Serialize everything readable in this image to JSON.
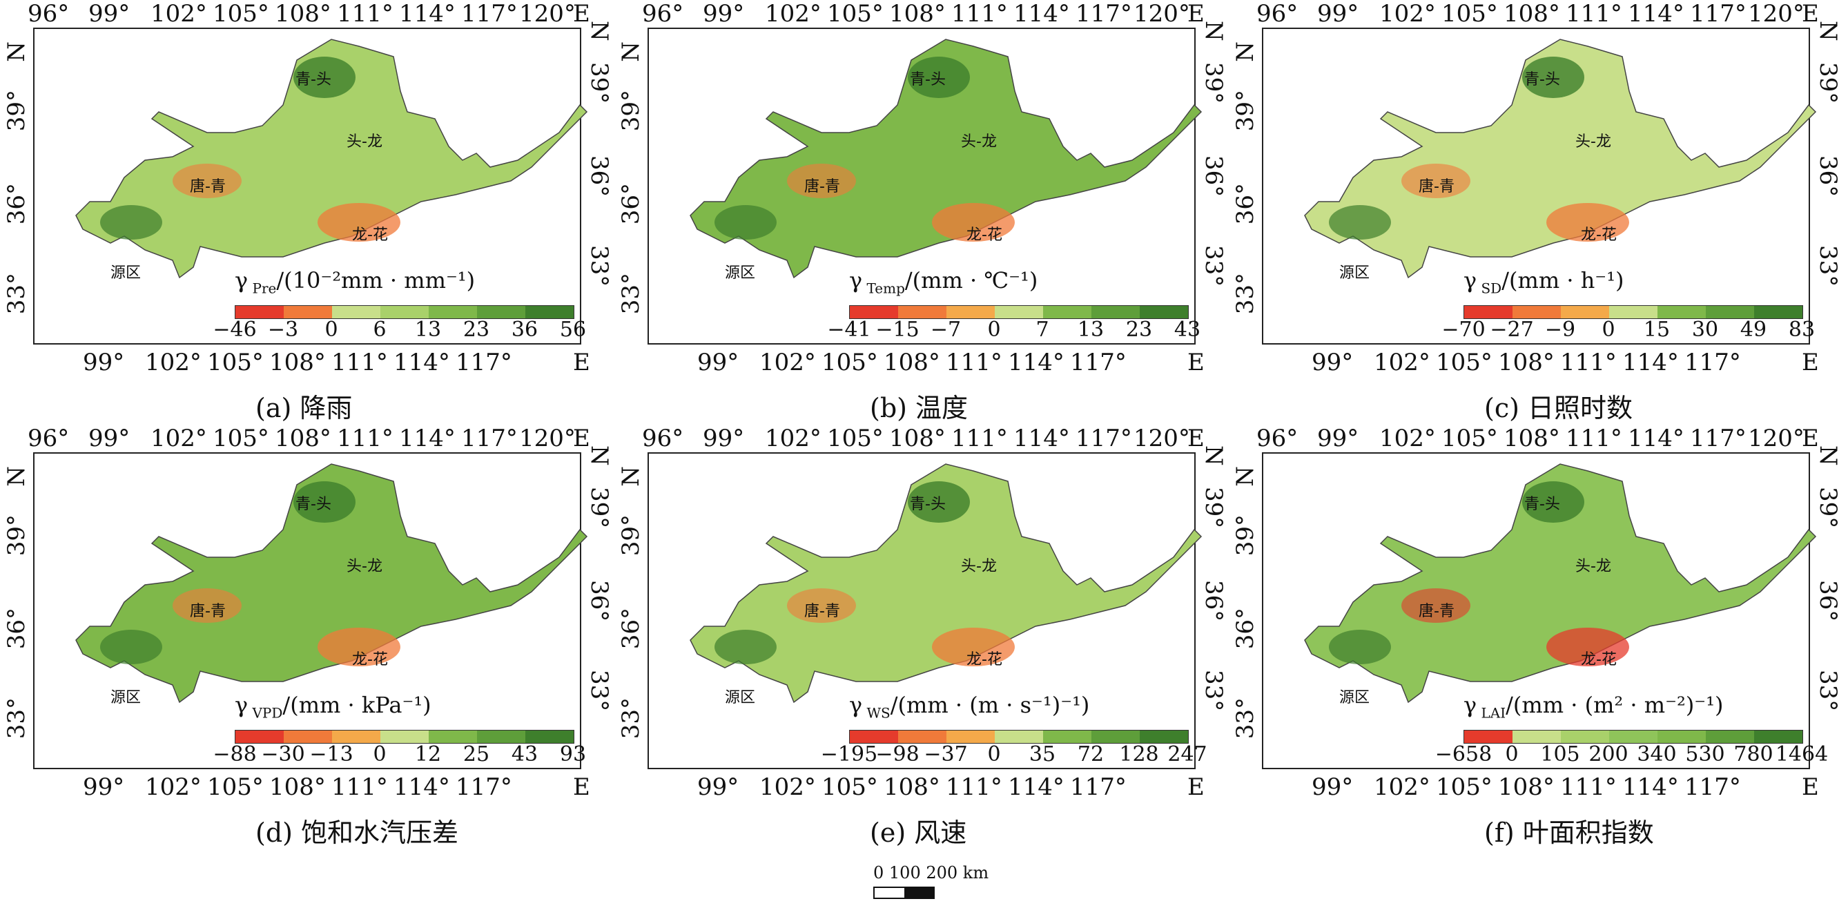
{
  "lon_ticks_top": [
    "96°",
    "99°",
    "102°",
    "105°",
    "108°",
    "111°",
    "114°",
    "117°",
    "120°"
  ],
  "lon_ticks_bottom": [
    "99°",
    "102°",
    "105°",
    "108°",
    "111°",
    "114°",
    "117°"
  ],
  "lat_ticks": [
    "33°",
    "36°",
    "39°"
  ],
  "axis_e": "E",
  "axis_n": "N",
  "regions": {
    "qingtou": "青-头",
    "toulong": "头-龙",
    "tangqing": "唐-青",
    "longhua": "龙-花",
    "yuanqu": "源区"
  },
  "panels": [
    {
      "caption": "(a) 降雨",
      "legend_symbol": "γ",
      "legend_sub": "Pre",
      "legend_unit": "/(10⁻²mm · mm⁻¹)",
      "breaks": [
        "−46",
        "−3",
        "0",
        "6",
        "13",
        "23",
        "36",
        "56"
      ],
      "colors": [
        "#e53b2c",
        "#f07a3a",
        "#c8df8a",
        "#a9d16a",
        "#7fb84a",
        "#5e9e3a",
        "#3e7f2c"
      ],
      "fill_main": "#a9d16a",
      "fill_accent": "#3e7f2c",
      "fill_hot": "#f07a3a"
    },
    {
      "caption": "(b) 温度",
      "legend_symbol": "γ",
      "legend_sub": "Temp",
      "legend_unit": "/(mm · ℃⁻¹)",
      "breaks": [
        "−41",
        "−15",
        "−7",
        "0",
        "7",
        "13",
        "23",
        "43"
      ],
      "colors": [
        "#e53b2c",
        "#f07a3a",
        "#f4a94a",
        "#c8df8a",
        "#7fb84a",
        "#5e9e3a",
        "#3e7f2c"
      ],
      "fill_main": "#7fb84a",
      "fill_accent": "#3e7f2c",
      "fill_hot": "#f07a3a"
    },
    {
      "caption": "(c) 日照时数",
      "legend_symbol": "γ",
      "legend_sub": "SD",
      "legend_unit": "/(mm · h⁻¹)",
      "breaks": [
        "−70",
        "−27",
        "−9",
        "0",
        "15",
        "30",
        "49",
        "83"
      ],
      "colors": [
        "#e53b2c",
        "#f07a3a",
        "#f4a94a",
        "#c8df8a",
        "#7fb84a",
        "#5e9e3a",
        "#3e7f2c"
      ],
      "fill_main": "#c8df8a",
      "fill_accent": "#3e7f2c",
      "fill_hot": "#f07a3a"
    },
    {
      "caption": "(d) 饱和水汽压差",
      "legend_symbol": "γ",
      "legend_sub": "VPD",
      "legend_unit": "/(mm · kPa⁻¹)",
      "breaks": [
        "−88",
        "−30",
        "−13",
        "0",
        "12",
        "25",
        "43",
        "93"
      ],
      "colors": [
        "#e53b2c",
        "#f07a3a",
        "#f4a94a",
        "#c8df8a",
        "#7fb84a",
        "#5e9e3a",
        "#3e7f2c"
      ],
      "fill_main": "#7fb84a",
      "fill_accent": "#3e7f2c",
      "fill_hot": "#f07a3a"
    },
    {
      "caption": "(e) 风速",
      "legend_symbol": "γ",
      "legend_sub": "WS",
      "legend_unit": "/(mm · (m · s⁻¹)⁻¹)",
      "breaks": [
        "−195",
        "−98",
        "−37",
        "0",
        "35",
        "72",
        "128",
        "247"
      ],
      "colors": [
        "#e53b2c",
        "#f07a3a",
        "#f4a94a",
        "#c8df8a",
        "#7fb84a",
        "#5e9e3a",
        "#3e7f2c"
      ],
      "fill_main": "#a9d16a",
      "fill_accent": "#3e7f2c",
      "fill_hot": "#f07a3a"
    },
    {
      "caption": "(f) 叶面积指数",
      "legend_symbol": "γ",
      "legend_sub": "LAI",
      "legend_unit": "/(mm · (m² · m⁻²)⁻¹)",
      "breaks": [
        "−658",
        "0",
        "105",
        "200",
        "340",
        "530",
        "780",
        "1464"
      ],
      "colors": [
        "#e53b2c",
        "#c8df8a",
        "#a9d16a",
        "#8fc45a",
        "#7fb84a",
        "#5e9e3a",
        "#3e7f2c"
      ],
      "fill_main": "#8fc45a",
      "fill_accent": "#3e7f2c",
      "fill_hot": "#e53b2c"
    }
  ],
  "scale": {
    "label": "0 100 200 km"
  }
}
